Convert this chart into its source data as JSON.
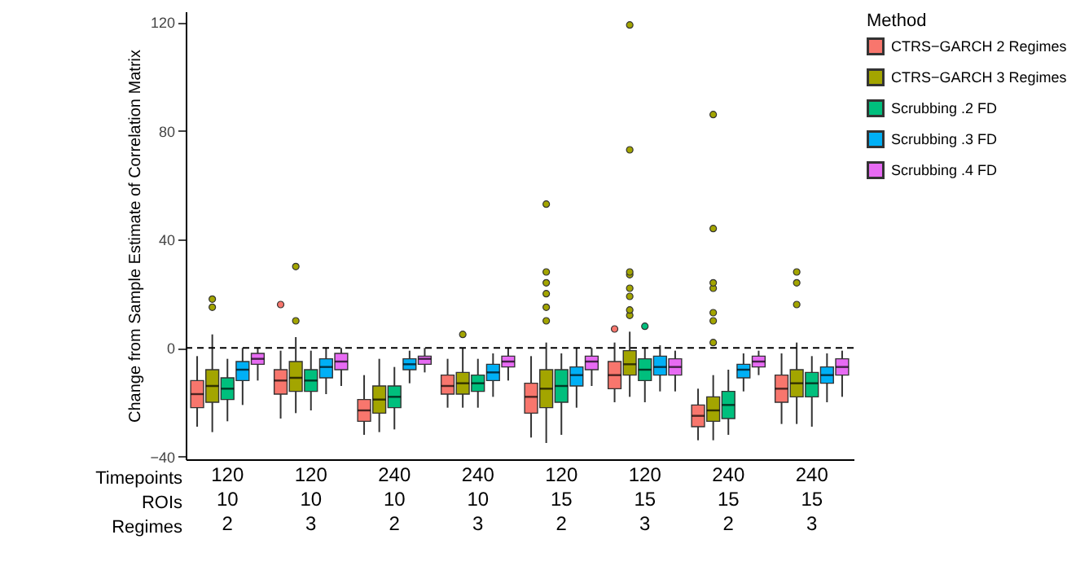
{
  "chart_data": {
    "type": "box",
    "ylabel": "Change from Sample Estimate of Correlation Matrix",
    "legend_title": "Method",
    "legend": "right",
    "grid": false,
    "ylim": [
      -41,
      124
    ],
    "yticks": [
      -40,
      0,
      40,
      80,
      120
    ],
    "categories": [
      "120\n10\n2",
      "120\n10\n3",
      "240\n10\n2",
      "240\n10\n3",
      "120\n15\n2",
      "120\n15\n3",
      "240\n15\n2",
      "240\n15\n3"
    ],
    "annotations": [
      "Timepoints",
      "ROIs",
      "Regimes"
    ],
    "ref_lines": [
      {
        "axis": "y",
        "value": 0,
        "line_style": "dashed",
        "color": "#000000"
      }
    ],
    "series": [
      {
        "name": "CTRS−GARCH 2 Regimes",
        "color": "#f8766d",
        "boxes": [
          {
            "low": -29,
            "q1": -22,
            "median": -17,
            "q3": -12,
            "high": -3
          },
          {
            "low": -26,
            "q1": -17,
            "median": -12,
            "q3": -8,
            "high": -1,
            "outliers": [
              16
            ]
          },
          {
            "low": -32,
            "q1": -27,
            "median": -23,
            "q3": -19,
            "high": -10
          },
          {
            "low": -22,
            "q1": -17,
            "median": -14,
            "q3": -10,
            "high": -4
          },
          {
            "low": -33,
            "q1": -24,
            "median": -18,
            "q3": -13,
            "high": -3
          },
          {
            "low": -20,
            "q1": -15,
            "median": -10,
            "q3": -5,
            "high": 2,
            "outliers": [
              7
            ]
          },
          {
            "low": -34,
            "q1": -29,
            "median": -25,
            "q3": -21,
            "high": -15
          },
          {
            "low": -28,
            "q1": -20,
            "median": -15,
            "q3": -10,
            "high": -2
          }
        ]
      },
      {
        "name": "CTRS−GARCH 3 Regimes",
        "color": "#a3a500",
        "boxes": [
          {
            "low": -31,
            "q1": -20,
            "median": -14,
            "q3": -8,
            "high": 5,
            "outliers": [
              15,
              18
            ]
          },
          {
            "low": -24,
            "q1": -16,
            "median": -11,
            "q3": -5,
            "high": 4,
            "outliers": [
              10,
              30
            ]
          },
          {
            "low": -31,
            "q1": -24,
            "median": -19,
            "q3": -14,
            "high": -4
          },
          {
            "low": -22,
            "q1": -17,
            "median": -13,
            "q3": -9,
            "high": 0,
            "outliers": [
              5
            ]
          },
          {
            "low": -35,
            "q1": -22,
            "median": -15,
            "q3": -8,
            "high": 2,
            "outliers": [
              10,
              15,
              20,
              24,
              28,
              53
            ]
          },
          {
            "low": -18,
            "q1": -10,
            "median": -6,
            "q3": -1,
            "high": 6,
            "outliers": [
              12,
              14,
              19,
              22,
              27,
              28,
              73,
              119
            ]
          },
          {
            "low": -34,
            "q1": -27,
            "median": -23,
            "q3": -18,
            "high": -10,
            "outliers": [
              2,
              10,
              13,
              22,
              24,
              44,
              86
            ]
          },
          {
            "low": -28,
            "q1": -18,
            "median": -13,
            "q3": -8,
            "high": 2,
            "outliers": [
              16,
              24,
              28
            ]
          }
        ]
      },
      {
        "name": "Scrubbing .2 FD",
        "color": "#00bf7d",
        "boxes": [
          {
            "low": -27,
            "q1": -19,
            "median": -15,
            "q3": -11,
            "high": -4
          },
          {
            "low": -23,
            "q1": -16,
            "median": -12,
            "q3": -8,
            "high": -1
          },
          {
            "low": -30,
            "q1": -22,
            "median": -18,
            "q3": -14,
            "high": -7
          },
          {
            "low": -22,
            "q1": -16,
            "median": -13,
            "q3": -10,
            "high": -4
          },
          {
            "low": -32,
            "q1": -20,
            "median": -14,
            "q3": -8,
            "high": -2
          },
          {
            "low": -20,
            "q1": -12,
            "median": -8,
            "q3": -4,
            "high": 0,
            "outliers": [
              8
            ]
          },
          {
            "low": -32,
            "q1": -26,
            "median": -21,
            "q3": -16,
            "high": -8
          },
          {
            "low": -29,
            "q1": -18,
            "median": -13,
            "q3": -9,
            "high": -3
          }
        ]
      },
      {
        "name": "Scrubbing .3 FD",
        "color": "#00b0f6",
        "boxes": [
          {
            "low": -21,
            "q1": -12,
            "median": -8,
            "q3": -5,
            "high": 0
          },
          {
            "low": -17,
            "q1": -11,
            "median": -7,
            "q3": -4,
            "high": 0
          },
          {
            "low": -13,
            "q1": -8,
            "median": -6,
            "q3": -4,
            "high": -1
          },
          {
            "low": -18,
            "q1": -12,
            "median": -9,
            "q3": -6,
            "high": -2
          },
          {
            "low": -22,
            "q1": -14,
            "median": -10,
            "q3": -7,
            "high": 0
          },
          {
            "low": -16,
            "q1": -10,
            "median": -7,
            "q3": -3,
            "high": 1
          },
          {
            "low": -16,
            "q1": -11,
            "median": -8,
            "q3": -6,
            "high": -2
          },
          {
            "low": -20,
            "q1": -13,
            "median": -10,
            "q3": -7,
            "high": -2
          }
        ]
      },
      {
        "name": "Scrubbing .4 FD",
        "color": "#e76bf3",
        "boxes": [
          {
            "low": -12,
            "q1": -6,
            "median": -4,
            "q3": -2,
            "high": 0
          },
          {
            "low": -14,
            "q1": -8,
            "median": -5,
            "q3": -2,
            "high": 0
          },
          {
            "low": -9,
            "q1": -6,
            "median": -4,
            "q3": -3,
            "high": 0
          },
          {
            "low": -12,
            "q1": -7,
            "median": -5,
            "q3": -3,
            "high": 0
          },
          {
            "low": -14,
            "q1": -8,
            "median": -5,
            "q3": -3,
            "high": 0
          },
          {
            "low": -16,
            "q1": -10,
            "median": -7,
            "q3": -4,
            "high": -1
          },
          {
            "low": -10,
            "q1": -7,
            "median": -5,
            "q3": -3,
            "high": -1
          },
          {
            "low": -18,
            "q1": -10,
            "median": -7,
            "q3": -4,
            "high": -1
          }
        ]
      }
    ]
  }
}
